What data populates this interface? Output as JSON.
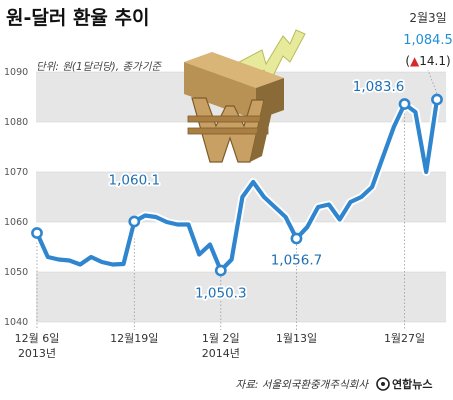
{
  "chart_data": {
    "type": "line",
    "title": "원-달러 환율 추이",
    "unit_label": "단위: 원(1달러당), 종가기준",
    "source": "자료: 서울외국환중개주식회사",
    "brand": "연합뉴스",
    "ylim": [
      1040,
      1090
    ],
    "yticks": [
      1040,
      1050,
      1060,
      1070,
      1080,
      1090
    ],
    "grid": true,
    "x_labels": [
      {
        "index": 0,
        "lines": [
          "12월 6일",
          "2013년"
        ]
      },
      {
        "index": 9,
        "lines": [
          "12월19일"
        ]
      },
      {
        "index": 17,
        "lines": [
          "1월 2일",
          "2014년"
        ]
      },
      {
        "index": 24,
        "lines": [
          "1월13일"
        ]
      },
      {
        "index": 34,
        "lines": [
          "1월27일"
        ]
      }
    ],
    "series": [
      {
        "color": "#2f86cf",
        "values": [
          1057.8,
          1053.0,
          1052.5,
          1052.3,
          1051.5,
          1053.0,
          1052.0,
          1051.5,
          1051.6,
          1060.1,
          1061.3,
          1061.0,
          1060.0,
          1059.5,
          1059.5,
          1053.5,
          1055.5,
          1050.3,
          1052.5,
          1065.0,
          1068.0,
          1065.0,
          1063.0,
          1061.0,
          1056.7,
          1059.0,
          1063.0,
          1063.5,
          1060.5,
          1064.0,
          1065.0,
          1067.0,
          1073.0,
          1079.0,
          1083.6,
          1082.0,
          1070.0,
          1084.5
        ]
      }
    ],
    "annotations": [
      {
        "index": 9,
        "text": "1,060.1"
      },
      {
        "index": 17,
        "text": "1,050.3"
      },
      {
        "index": 24,
        "text": "1,056.7"
      },
      {
        "index": 34,
        "text": "1,083.6"
      }
    ],
    "latest": {
      "index": 37,
      "date": "2월3일",
      "value": "1,084.5",
      "change_arrow": "▲",
      "change": "14.1",
      "change_color": "#d62b2b"
    }
  }
}
